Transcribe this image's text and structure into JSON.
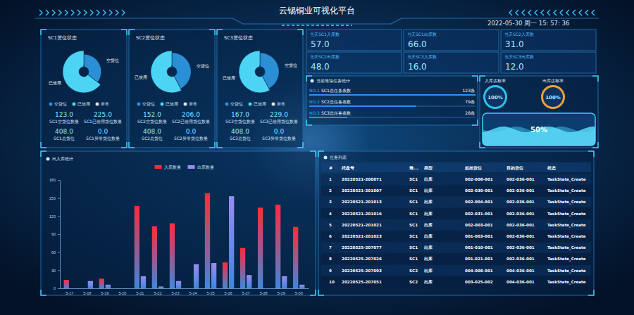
{
  "header": {
    "title": "云锡铜业可视化平台",
    "datetime": "2022-05-30 周一 15: 57: 36"
  },
  "chart_data": [
    {
      "type": "pie",
      "title": "SC1货位状态",
      "categories": [
        "空货位",
        "已使用",
        "异常"
      ],
      "values": [
        123,
        225,
        0
      ],
      "colors": [
        "#2b8fd6",
        "#4dd4f4",
        "#e0e0e0"
      ],
      "legend": "bottom"
    },
    {
      "type": "pie",
      "title": "SC2货位状态",
      "categories": [
        "空货位",
        "已使用",
        "异常"
      ],
      "values": [
        152,
        206,
        0
      ],
      "colors": [
        "#2b8fd6",
        "#4dd4f4",
        "#e0e0e0"
      ],
      "legend": "bottom"
    },
    {
      "type": "pie",
      "title": "SC3货位状态",
      "categories": [
        "空货位",
        "已使用",
        "异常"
      ],
      "values": [
        167,
        229,
        0
      ],
      "colors": [
        "#2b8fd6",
        "#4dd4f4",
        "#e0e0e0"
      ],
      "legend": "bottom"
    },
    {
      "type": "bar",
      "title": "出入库统计",
      "categories": [
        "5-17",
        "5-18",
        "5-19",
        "5-20",
        "5-21",
        "5-22",
        "5-23",
        "5-24",
        "5-25",
        "5-26",
        "5-27",
        "5-28",
        "5-29",
        "5-30"
      ],
      "series": [
        {
          "name": "入库数量",
          "color": "#ff2a3a",
          "values": [
            14,
            0,
            16,
            0,
            137,
            103,
            108,
            0,
            158,
            43,
            67,
            134,
            139,
            102
          ]
        },
        {
          "name": "出库数量",
          "color": "#9a8cf0",
          "values": [
            0,
            12,
            6,
            0,
            20,
            3,
            12,
            40,
            42,
            153,
            22,
            0,
            20,
            6
          ]
        }
      ],
      "ylim": [
        0,
        180
      ],
      "yticks": [
        0,
        30,
        60,
        90,
        120,
        150,
        180
      ],
      "grid": false,
      "legend": "top"
    }
  ],
  "location_stats": [
    [
      {
        "value": "123.0",
        "label": "SC1空货位数量"
      },
      {
        "value": "225.0",
        "label": "SC1已使用货位数量"
      },
      {
        "value": "408.0",
        "label": "SC1总货位"
      },
      {
        "value": "0.0",
        "label": "SC1异常货位数量"
      }
    ],
    [
      {
        "value": "152.0",
        "label": "SC2空货位数量"
      },
      {
        "value": "206.0",
        "label": "SC2已使用货位数量"
      },
      {
        "value": "408.0",
        "label": "SC2总货位"
      },
      {
        "value": "0.0",
        "label": "SC2异常货位数量"
      }
    ],
    [
      {
        "value": "167.0",
        "label": "SC3空货位数量"
      },
      {
        "value": "229.0",
        "label": "SC3已使用货位数量"
      },
      {
        "value": "408.0",
        "label": "SC3总货位"
      },
      {
        "value": "0.0",
        "label": "SC3异常货位数量"
      }
    ]
  ],
  "daily_counts": [
    {
      "label": "当天SC1入库数",
      "value": "57.0"
    },
    {
      "label": "当天SC1出库数",
      "value": "66.0"
    },
    {
      "label": "当天SC2入库数",
      "value": "31.0"
    },
    {
      "label": "当天SC2出库数",
      "value": "48.0"
    },
    {
      "label": "当天SC3入库数",
      "value": "16.0"
    },
    {
      "label": "当天SC3出库数",
      "value": "12.0"
    }
  ],
  "task_stats": {
    "title": "当前堆垛任务统计",
    "items": [
      {
        "rank": "NO.1",
        "label": "SC1总任务条数",
        "value": 123,
        "value_label": "123条"
      },
      {
        "rank": "NO.2",
        "label": "SC2总任务条数",
        "value": 79,
        "value_label": "79条"
      },
      {
        "rank": "NO.3",
        "label": "SC3总任务条数",
        "value": 28,
        "value_label": "28条"
      }
    ]
  },
  "rates": {
    "range": [
      0,
      100
    ],
    "gauges": [
      {
        "label": "入库达标率",
        "value": 100,
        "value_label": "100%"
      },
      {
        "label": "出库达标率",
        "value": 100,
        "value_label": "100%"
      }
    ],
    "wave": {
      "value": 50,
      "value_label": "50%"
    }
  },
  "table": {
    "title": "任务列表",
    "columns": [
      "#",
      "托盘号",
      "堆...",
      "类型",
      "起始货位",
      "目的货位",
      "状态"
    ],
    "rows": [
      [
        "1",
        "20220521-200071",
        "SC1",
        "出库",
        "002-008-001",
        "002-036-001",
        "TaskState_Create"
      ],
      [
        "2",
        "20220521-201007",
        "SC1",
        "出库",
        "002-030-001",
        "002-036-001",
        "TaskState_Create"
      ],
      [
        "3",
        "20220521-201013",
        "SC1",
        "出库",
        "002-004-001",
        "002-036-001",
        "TaskState_Create"
      ],
      [
        "4",
        "20220521-201016",
        "SC1",
        "出库",
        "002-031-001",
        "002-036-001",
        "TaskState_Create"
      ],
      [
        "5",
        "20220521-201021",
        "SC1",
        "出库",
        "002-003-001",
        "002-036-001",
        "TaskState_Create"
      ],
      [
        "6",
        "20220521-201023",
        "SC1",
        "出库",
        "001-003-001",
        "002-036-001",
        "TaskState_Create"
      ],
      [
        "7",
        "20220525-207077",
        "SC1",
        "出库",
        "001-010-001",
        "002-036-001",
        "TaskState_Create"
      ],
      [
        "8",
        "20220525-207026",
        "SC1",
        "出库",
        "001-021-001",
        "002-036-001",
        "TaskState_Create"
      ],
      [
        "9",
        "20220525-207093",
        "SC2",
        "出库",
        "004-008-001",
        "004-036-001",
        "TaskState_Create"
      ],
      [
        "10",
        "20220525-207051",
        "SC2",
        "出库",
        "003-025-002",
        "004-036-001",
        "TaskState_Create"
      ]
    ]
  }
}
